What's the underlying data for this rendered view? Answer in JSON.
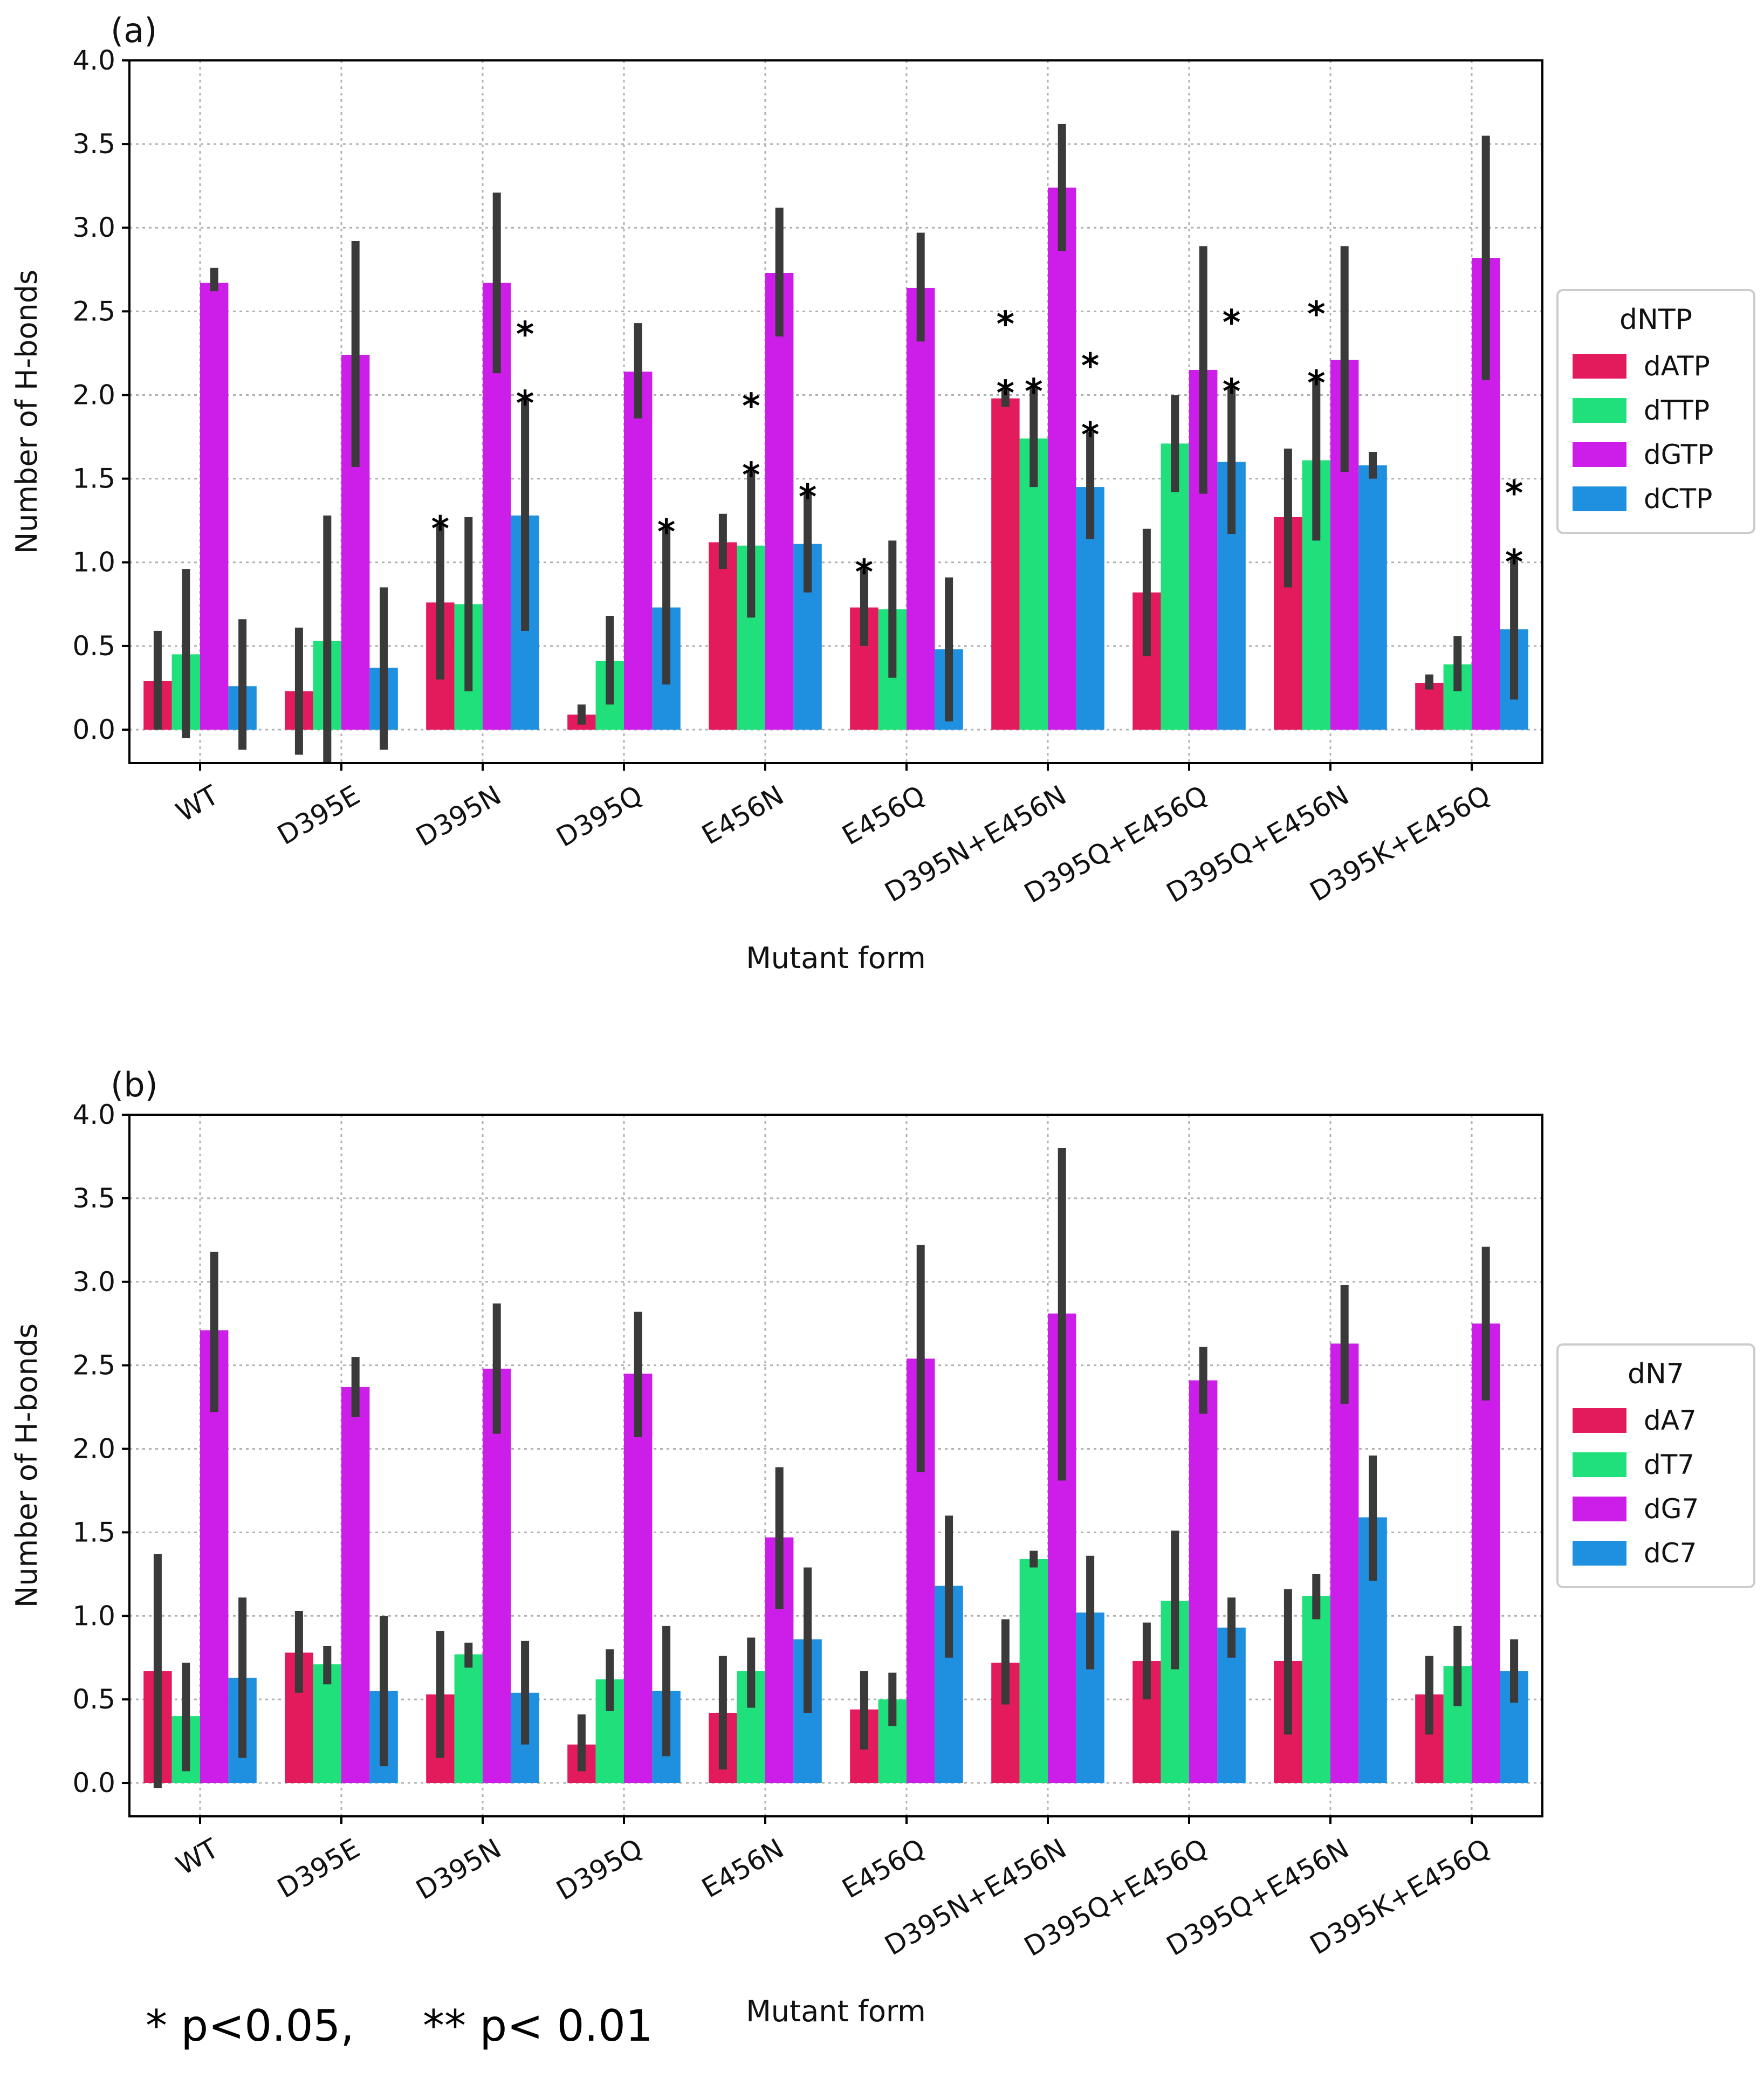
{
  "colors": {
    "dA": "#e31a5c",
    "dT": "#1fe07a",
    "dG": "#cc1ee8",
    "dC": "#1f8fe0",
    "errorbar": "#3a3a3a",
    "grid": "#b0b0b0"
  },
  "footnote": "* p<0.05,     ** p< 0.01",
  "chart_data": [
    {
      "type": "bar",
      "panel_label": "(a)",
      "xlabel": "Mutant form",
      "ylabel": "Number of H-bonds",
      "ylim": [
        -0.2,
        4.0
      ],
      "yticks": [
        "0.0",
        "0.5",
        "1.0",
        "1.5",
        "2.0",
        "2.5",
        "3.0",
        "3.5",
        "4.0"
      ],
      "grid": true,
      "legend_title": "dNTP",
      "legend_position": "right",
      "categories": [
        "WT",
        "D395E",
        "D395N",
        "D395Q",
        "E456N",
        "E456Q",
        "D395N+E456N",
        "D395Q+E456Q",
        "D395Q+E456N",
        "D395K+E456Q"
      ],
      "series": [
        {
          "name": "dATP",
          "color_key": "dA",
          "values": [
            0.29,
            0.23,
            0.76,
            0.09,
            1.12,
            0.73,
            1.98,
            0.82,
            1.27,
            0.28
          ],
          "err_low": [
            0.0,
            -0.15,
            0.3,
            0.03,
            0.96,
            0.5,
            1.93,
            0.44,
            0.85,
            0.24
          ],
          "err_high": [
            0.59,
            0.61,
            1.22,
            0.15,
            1.29,
            0.96,
            2.03,
            1.2,
            1.68,
            0.33
          ],
          "sig": [
            "",
            "",
            "*",
            "",
            "",
            "*",
            "**",
            "",
            "",
            ""
          ]
        },
        {
          "name": "dTTP",
          "color_key": "dT",
          "values": [
            0.45,
            0.53,
            0.75,
            0.41,
            1.1,
            0.72,
            1.74,
            1.71,
            1.61,
            0.39
          ],
          "err_low": [
            -0.05,
            -0.2,
            0.23,
            0.15,
            0.67,
            0.31,
            1.45,
            1.42,
            1.13,
            0.23
          ],
          "err_high": [
            0.96,
            1.28,
            1.27,
            0.68,
            1.54,
            1.13,
            2.04,
            2.0,
            2.09,
            0.56
          ],
          "sig": [
            "",
            "",
            "",
            "",
            "**",
            "",
            "*",
            "",
            "**",
            ""
          ]
        },
        {
          "name": "dGTP",
          "color_key": "dG",
          "values": [
            2.67,
            2.24,
            2.67,
            2.14,
            2.73,
            2.64,
            3.24,
            2.15,
            2.21,
            2.82
          ],
          "err_low": [
            2.62,
            1.57,
            2.13,
            1.86,
            2.35,
            2.32,
            2.86,
            1.41,
            1.54,
            2.09
          ],
          "err_high": [
            2.76,
            2.92,
            3.21,
            2.43,
            3.12,
            2.97,
            3.62,
            2.89,
            2.89,
            3.55
          ],
          "sig": [
            "",
            "",
            "",
            "",
            "",
            "",
            "",
            "",
            "",
            ""
          ]
        },
        {
          "name": "dCTP",
          "color_key": "dC",
          "values": [
            0.26,
            0.37,
            1.28,
            0.73,
            1.11,
            0.48,
            1.45,
            1.6,
            1.58,
            0.6
          ],
          "err_low": [
            -0.12,
            -0.12,
            0.59,
            0.27,
            0.82,
            0.05,
            1.14,
            1.17,
            1.5,
            0.18
          ],
          "err_high": [
            0.66,
            0.85,
            1.97,
            1.2,
            1.41,
            0.91,
            1.78,
            2.04,
            1.66,
            1.02
          ],
          "sig": [
            "",
            "",
            "**",
            "*",
            "*",
            "",
            "**",
            "**",
            "",
            "**"
          ]
        }
      ]
    },
    {
      "type": "bar",
      "panel_label": "(b)",
      "xlabel": "Mutant form",
      "ylabel": "Number of H-bonds",
      "ylim": [
        -0.2,
        4.0
      ],
      "yticks": [
        "0.0",
        "0.5",
        "1.0",
        "1.5",
        "2.0",
        "2.5",
        "3.0",
        "3.5",
        "4.0"
      ],
      "grid": true,
      "legend_title": "dN7",
      "legend_position": "right",
      "categories": [
        "WT",
        "D395E",
        "D395N",
        "D395Q",
        "E456N",
        "E456Q",
        "D395N+E456N",
        "D395Q+E456Q",
        "D395Q+E456N",
        "D395K+E456Q"
      ],
      "series": [
        {
          "name": "dA7",
          "color_key": "dA",
          "values": [
            0.67,
            0.78,
            0.53,
            0.23,
            0.42,
            0.44,
            0.72,
            0.73,
            0.73,
            0.53
          ],
          "err_low": [
            -0.03,
            0.54,
            0.15,
            0.07,
            0.08,
            0.2,
            0.47,
            0.5,
            0.29,
            0.29
          ],
          "err_high": [
            1.37,
            1.03,
            0.91,
            0.41,
            0.76,
            0.67,
            0.98,
            0.96,
            1.16,
            0.76
          ],
          "sig": [
            "",
            "",
            "",
            "",
            "",
            "",
            "",
            "",
            "",
            ""
          ]
        },
        {
          "name": "dT7",
          "color_key": "dT",
          "values": [
            0.4,
            0.71,
            0.77,
            0.62,
            0.67,
            0.5,
            1.34,
            1.09,
            1.12,
            0.7
          ],
          "err_low": [
            0.07,
            0.59,
            0.69,
            0.43,
            0.45,
            0.34,
            1.29,
            0.68,
            0.98,
            0.46
          ],
          "err_high": [
            0.72,
            0.82,
            0.84,
            0.8,
            0.87,
            0.66,
            1.39,
            1.51,
            1.25,
            0.94
          ],
          "sig": [
            "",
            "",
            "",
            "",
            "",
            "",
            "",
            "",
            "",
            ""
          ]
        },
        {
          "name": "dG7",
          "color_key": "dG",
          "values": [
            2.71,
            2.37,
            2.48,
            2.45,
            1.47,
            2.54,
            2.81,
            2.41,
            2.63,
            2.75
          ],
          "err_low": [
            2.22,
            2.19,
            2.09,
            2.07,
            1.04,
            1.86,
            1.81,
            2.21,
            2.27,
            2.29
          ],
          "err_high": [
            3.18,
            2.55,
            2.87,
            2.82,
            1.89,
            3.22,
            3.8,
            2.61,
            2.98,
            3.21
          ],
          "sig": [
            "",
            "",
            "",
            "",
            "",
            "",
            "",
            "",
            "",
            ""
          ]
        },
        {
          "name": "dC7",
          "color_key": "dC",
          "values": [
            0.63,
            0.55,
            0.54,
            0.55,
            0.86,
            1.18,
            1.02,
            0.93,
            1.59,
            0.67
          ],
          "err_low": [
            0.15,
            0.1,
            0.23,
            0.16,
            0.42,
            0.75,
            0.68,
            0.75,
            1.21,
            0.48
          ],
          "err_high": [
            1.11,
            1.0,
            0.85,
            0.94,
            1.29,
            1.6,
            1.36,
            1.11,
            1.96,
            0.86
          ],
          "sig": [
            "",
            "",
            "",
            "",
            "",
            "",
            "",
            "",
            "",
            ""
          ]
        }
      ]
    }
  ]
}
